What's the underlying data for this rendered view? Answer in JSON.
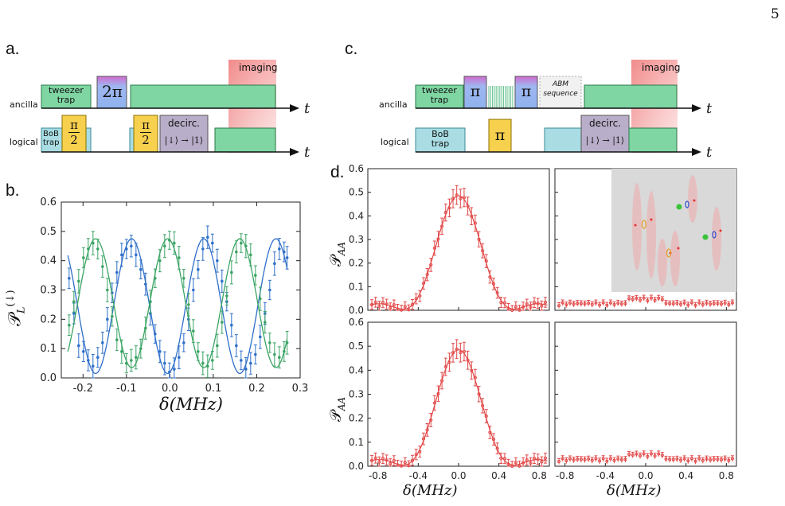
{
  "page_number": "5",
  "panel_labels": {
    "a": "a.",
    "b": "b.",
    "c": "c.",
    "d": "d."
  },
  "panel_a": {
    "rows": [
      "ancilla",
      "logical"
    ],
    "t_label": "t",
    "blocks": {
      "tweezer": [
        "tweezer",
        "trap"
      ],
      "two_pi": "2π",
      "bob": [
        "BoB",
        "trap"
      ],
      "half_num": "π",
      "half_den": "2",
      "decirc": "decirc.",
      "decirc_map": "|↓⟩ → |1⟩",
      "imaging": "imaging"
    },
    "colors": {
      "green": "#7fd6a3",
      "cyan": "#a9dde3",
      "yellow": "#f7d04e",
      "purple": "#b9aec9",
      "pulse_top": "#d16ad0",
      "pulse_bottom": "#8fb3ee",
      "imaging": "#f07070"
    }
  },
  "panel_c": {
    "rows": [
      "ancilla",
      "logical"
    ],
    "t_label": "t",
    "blocks": {
      "tweezer": [
        "tweezer",
        "trap"
      ],
      "pi": "π",
      "abm": [
        "ABM",
        "sequence"
      ],
      "bob": [
        "BoB",
        "trap"
      ],
      "decirc": "decirc.",
      "decirc_map": "|↓⟩ → |1⟩",
      "imaging": "imaging"
    }
  },
  "panel_b": {
    "ylabel_main": "𝒫",
    "ylabel_sub": "L",
    "ylabel_sup": "(↓)",
    "xlabel": "δ(MHz)",
    "x_ticks": [
      "-0.2",
      "-0.1",
      "0.0",
      "0.1",
      "0.2",
      "0.3"
    ],
    "y_ticks": [
      "0.0",
      "0.1",
      "0.2",
      "0.3",
      "0.4",
      "0.5",
      "0.6"
    ]
  },
  "panel_d": {
    "ylabel_main": "𝒫",
    "ylabel_sub": "AA",
    "xlabel": "δ(MHz)",
    "x_ticks": [
      "-0.8",
      "-0.4",
      "0.0",
      "0.4",
      "0.8"
    ],
    "y_ticks": [
      "0.0",
      "0.1",
      "0.2",
      "0.3",
      "0.4",
      "0.5",
      "0.6"
    ]
  },
  "chart_data": [
    {
      "type": "scatter",
      "id": "b",
      "xlabel": "δ(MHz)",
      "ylabel": "𝒫_L^(↓)",
      "xlim": [
        -0.25,
        0.3
      ],
      "ylim": [
        0,
        0.6
      ],
      "x_ticks": [
        -0.2,
        -0.1,
        0.0,
        0.1,
        0.2,
        0.3
      ],
      "y_ticks": [
        0,
        0.1,
        0.2,
        0.3,
        0.4,
        0.5,
        0.6
      ],
      "series": [
        {
          "color": "#2e6fc9",
          "fit": {
            "offset": 0.245,
            "amp": 0.23,
            "period": 0.166,
            "x0": -0.005,
            "sign": -1
          },
          "points": [
            [
              -0.232,
              0.34
            ],
            [
              -0.221,
              0.22
            ],
            [
              -0.21,
              0.11
            ],
            [
              -0.199,
              0.09
            ],
            [
              -0.188,
              0.06
            ],
            [
              -0.177,
              0.04
            ],
            [
              -0.166,
              0.07
            ],
            [
              -0.155,
              0.12
            ],
            [
              -0.144,
              0.2
            ],
            [
              -0.133,
              0.29
            ],
            [
              -0.122,
              0.36
            ],
            [
              -0.111,
              0.42
            ],
            [
              -0.1,
              0.44
            ],
            [
              -0.089,
              0.45
            ],
            [
              -0.078,
              0.42
            ],
            [
              -0.067,
              0.37
            ],
            [
              -0.056,
              0.32
            ],
            [
              -0.045,
              0.22
            ],
            [
              -0.034,
              0.15
            ],
            [
              -0.023,
              0.09
            ],
            [
              -0.012,
              0.05
            ],
            [
              -0.001,
              0.02
            ],
            [
              0.01,
              0.03
            ],
            [
              0.021,
              0.07
            ],
            [
              0.032,
              0.12
            ],
            [
              0.043,
              0.2
            ],
            [
              0.054,
              0.3
            ],
            [
              0.065,
              0.37
            ],
            [
              0.076,
              0.44
            ],
            [
              0.087,
              0.48
            ],
            [
              0.098,
              0.46
            ],
            [
              0.109,
              0.4
            ],
            [
              0.12,
              0.33
            ],
            [
              0.131,
              0.26
            ],
            [
              0.142,
              0.18
            ],
            [
              0.153,
              0.11
            ],
            [
              0.164,
              0.06
            ],
            [
              0.175,
              0.03
            ],
            [
              0.186,
              0.05
            ],
            [
              0.197,
              0.08
            ],
            [
              0.208,
              0.14
            ],
            [
              0.219,
              0.22
            ],
            [
              0.23,
              0.3
            ],
            [
              0.241,
              0.39
            ],
            [
              0.252,
              0.44
            ],
            [
              0.263,
              0.43
            ],
            [
              0.27,
              0.41
            ]
          ]
        },
        {
          "color": "#3aa464",
          "fit": {
            "offset": 0.255,
            "amp": 0.22,
            "period": 0.166,
            "x0": -0.005,
            "sign": 1
          },
          "points": [
            [
              -0.232,
              0.18
            ],
            [
              -0.221,
              0.26
            ],
            [
              -0.21,
              0.33
            ],
            [
              -0.199,
              0.41
            ],
            [
              -0.188,
              0.44
            ],
            [
              -0.177,
              0.46
            ],
            [
              -0.166,
              0.44
            ],
            [
              -0.155,
              0.38
            ],
            [
              -0.144,
              0.3
            ],
            [
              -0.133,
              0.21
            ],
            [
              -0.122,
              0.13
            ],
            [
              -0.111,
              0.09
            ],
            [
              -0.1,
              0.05
            ],
            [
              -0.089,
              0.06
            ],
            [
              -0.078,
              0.07
            ],
            [
              -0.067,
              0.1
            ],
            [
              -0.056,
              0.17
            ],
            [
              -0.045,
              0.26
            ],
            [
              -0.034,
              0.34
            ],
            [
              -0.023,
              0.4
            ],
            [
              -0.012,
              0.45
            ],
            [
              -0.001,
              0.47
            ],
            [
              0.01,
              0.46
            ],
            [
              0.021,
              0.41
            ],
            [
              0.032,
              0.34
            ],
            [
              0.043,
              0.25
            ],
            [
              0.054,
              0.16
            ],
            [
              0.065,
              0.09
            ],
            [
              0.076,
              0.05
            ],
            [
              0.087,
              0.04
            ],
            [
              0.098,
              0.06
            ],
            [
              0.109,
              0.11
            ],
            [
              0.12,
              0.19
            ],
            [
              0.131,
              0.28
            ],
            [
              0.142,
              0.36
            ],
            [
              0.153,
              0.43
            ],
            [
              0.164,
              0.46
            ],
            [
              0.175,
              0.45
            ],
            [
              0.186,
              0.42
            ],
            [
              0.197,
              0.35
            ],
            [
              0.208,
              0.27
            ],
            [
              0.219,
              0.19
            ],
            [
              0.23,
              0.12
            ],
            [
              0.241,
              0.08
            ],
            [
              0.252,
              0.07
            ],
            [
              0.263,
              0.09
            ],
            [
              0.27,
              0.12
            ]
          ]
        }
      ]
    },
    {
      "type": "scatter",
      "id": "d",
      "subplots": [
        {
          "row": 0,
          "col": 0,
          "main_peak": 0.48,
          "side_peak": 0.07
        },
        {
          "row": 0,
          "col": 1,
          "flat": 0.02,
          "inset": true
        },
        {
          "row": 1,
          "col": 0,
          "main_peak": 0.48,
          "side_peak": 0.07
        },
        {
          "row": 1,
          "col": 1,
          "flat": 0.02
        }
      ],
      "xlim": [
        -0.9,
        0.9
      ],
      "ylim": [
        0,
        0.6
      ],
      "x_ticks": [
        -0.8,
        -0.4,
        0.0,
        0.4,
        0.8
      ],
      "y_ticks": [
        0,
        0.1,
        0.2,
        0.3,
        0.4,
        0.5,
        0.6
      ],
      "color": "#e24848",
      "xlabel": "δ(MHz)",
      "ylabel": "𝒫_AA"
    }
  ]
}
